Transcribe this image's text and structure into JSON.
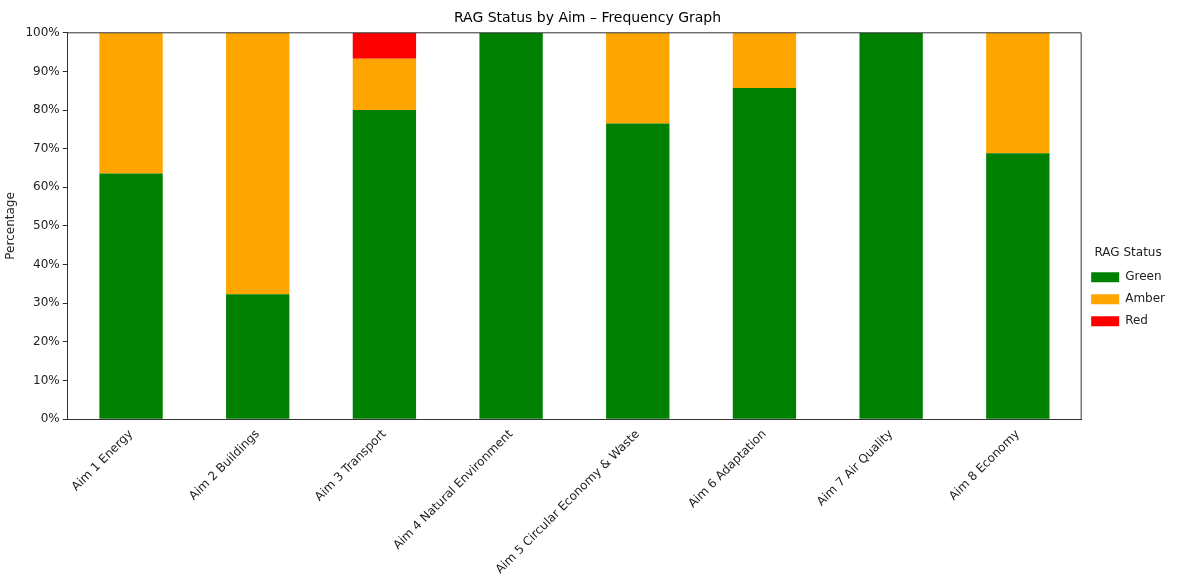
{
  "chart_data": {
    "type": "bar",
    "title": "RAG Status by Aim – Frequency Graph",
    "ylabel": "Percentage",
    "legend_title": "RAG Status",
    "categories": [
      "Aim 1 Energy",
      "Aim 2 Buildings",
      "Aim 3 Transport",
      "Aim 4 Natural Environment",
      "Aim 5 Circular Economy & Waste",
      "Aim 6 Adaptation",
      "Aim 7 Air Quality",
      "Aim 8 Economy"
    ],
    "stacked": true,
    "series": [
      {
        "name": "Green",
        "color": "#008000",
        "values": [
          63.6,
          32.3,
          80,
          100,
          76.5,
          85.7,
          100,
          68.8
        ]
      },
      {
        "name": "Amber",
        "color": "#ffa500",
        "values": [
          36.4,
          67.7,
          13.3,
          0,
          23.5,
          14.3,
          0,
          31.2
        ]
      },
      {
        "name": "Red",
        "color": "#ff0000",
        "values": [
          0,
          0,
          6.7,
          0,
          0,
          0,
          0,
          0
        ]
      }
    ],
    "ylim": [
      0,
      100
    ],
    "yticks": [
      {
        "value": 0,
        "label": "0%"
      },
      {
        "value": 10,
        "label": "10%"
      },
      {
        "value": 20,
        "label": "20%"
      },
      {
        "value": 30,
        "label": "30%"
      },
      {
        "value": 40,
        "label": "40%"
      },
      {
        "value": 50,
        "label": "50%"
      },
      {
        "value": 60,
        "label": "60%"
      },
      {
        "value": 70,
        "label": "70%"
      },
      {
        "value": 80,
        "label": "80%"
      },
      {
        "value": 90,
        "label": "90%"
      },
      {
        "value": 100,
        "label": "100%"
      }
    ],
    "grid": false,
    "legend": "right"
  }
}
